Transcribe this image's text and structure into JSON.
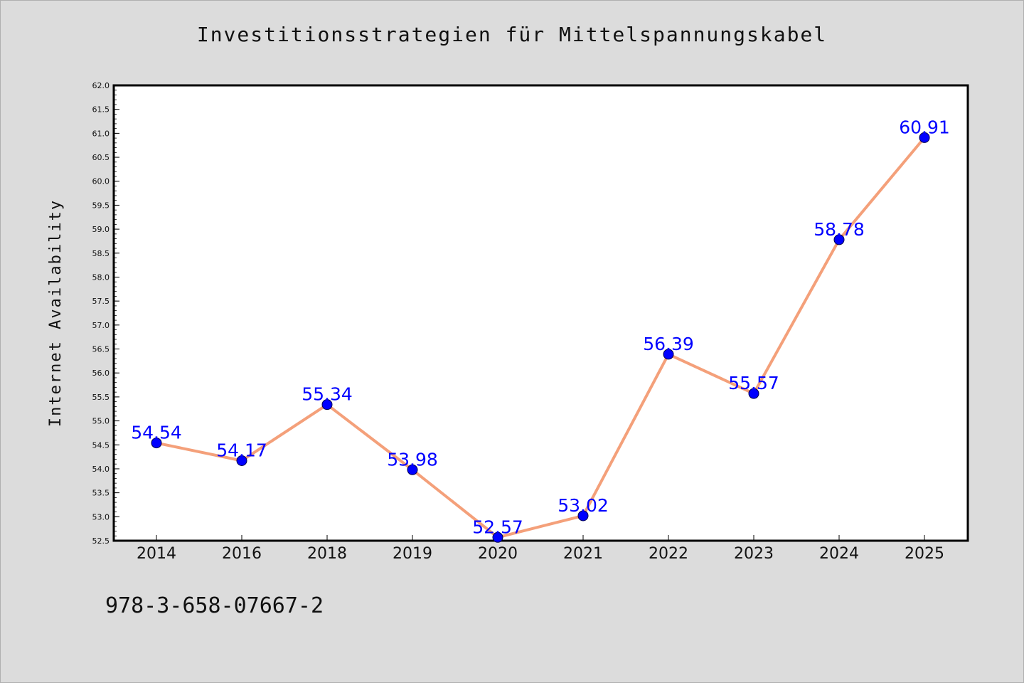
{
  "page": {
    "background": "#dcdcdc",
    "footer_code": "978-3-658-07667-2"
  },
  "chart_data": {
    "type": "line",
    "title": "Investitionsstrategien für Mittelspannungskabel",
    "xlabel": "",
    "ylabel": "Internet Availability",
    "categories": [
      "2014",
      "2016",
      "2018",
      "2019",
      "2020",
      "2021",
      "2022",
      "2023",
      "2024",
      "2025"
    ],
    "values": [
      54.54,
      54.17,
      55.34,
      53.98,
      52.57,
      53.02,
      56.39,
      55.57,
      58.78,
      60.91
    ],
    "data_labels": [
      "54.54",
      "54.17",
      "55.34",
      "53.98",
      "52.57",
      "53.02",
      "56.39",
      "55.57",
      "58.78",
      "60.91"
    ],
    "ylim": [
      52.5,
      62.0
    ],
    "yticks": [
      "52.5",
      "53.0",
      "53.5",
      "54.0",
      "54.5",
      "55.0",
      "55.5",
      "56.0",
      "56.5",
      "57.0",
      "57.5",
      "58.0",
      "58.5",
      "59.0",
      "59.5",
      "60.0",
      "60.5",
      "61.0",
      "61.5",
      "62.0"
    ],
    "grid": false,
    "line_color": "#f4a07a",
    "marker_color": "#0000ff",
    "label_color": "#0000ff"
  }
}
